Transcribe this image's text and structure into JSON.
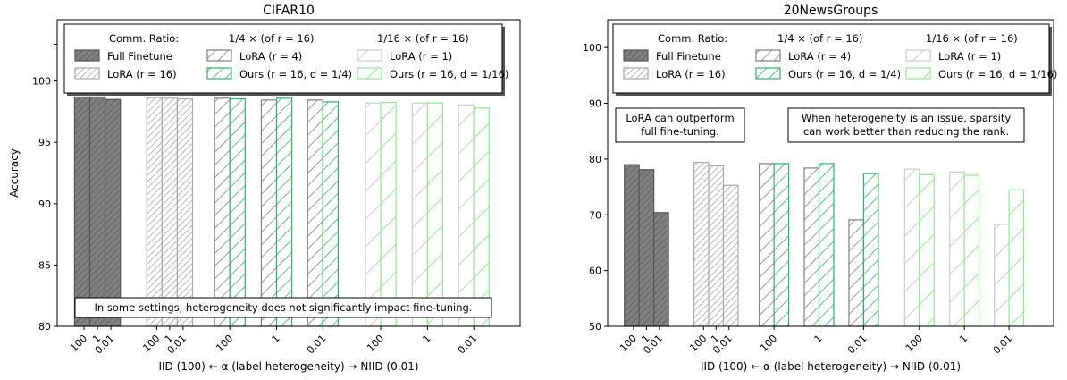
{
  "chart_data": [
    {
      "type": "bar",
      "title": "CIFAR10",
      "ylabel": "Accuracy",
      "xlabel": "IID (100) ← α (label heterogeneity) → NIID (0.01)",
      "ylim": [
        80,
        105
      ],
      "yticks": [
        80,
        85,
        90,
        95,
        100
      ],
      "grid": false,
      "legend_location": "top",
      "groups": [
        {
          "series": "Full Finetune",
          "alphas": [
            "100",
            "1",
            "0.01"
          ],
          "values": [
            98.7,
            98.7,
            98.5
          ]
        },
        {
          "series": "LoRA (r=16)",
          "alphas": [
            "100",
            "1",
            "0.01"
          ],
          "values": [
            98.65,
            98.6,
            98.55
          ]
        },
        {
          "series": "LoRA (r=4)",
          "alphas": [
            "100"
          ],
          "values": [
            98.6
          ]
        },
        {
          "series": "Ours (r=16, d=1/4)",
          "alphas": [
            "100"
          ],
          "values": [
            98.55
          ]
        },
        {
          "series": "LoRA (r=4)",
          "alphas": [
            "1"
          ],
          "values": [
            98.45
          ]
        },
        {
          "series": "Ours (r=16, d=1/4)",
          "alphas": [
            "1"
          ],
          "values": [
            98.6
          ]
        },
        {
          "series": "LoRA (r=4)",
          "alphas": [
            "0.01"
          ],
          "values": [
            98.45
          ]
        },
        {
          "series": "Ours (r=16, d=1/4)",
          "alphas": [
            "0.01"
          ],
          "values": [
            98.3
          ]
        },
        {
          "series": "LoRA (r=1)",
          "alphas": [
            "100"
          ],
          "values": [
            98.2
          ]
        },
        {
          "series": "Ours (r=16, d=1/16)",
          "alphas": [
            "100"
          ],
          "values": [
            98.25
          ]
        },
        {
          "series": "LoRA (r=1)",
          "alphas": [
            "1"
          ],
          "values": [
            98.2
          ]
        },
        {
          "series": "Ours (r=16, d=1/16)",
          "alphas": [
            "1"
          ],
          "values": [
            98.2
          ]
        },
        {
          "series": "LoRA (r=1)",
          "alphas": [
            "0.01"
          ],
          "values": [
            98.05
          ]
        },
        {
          "series": "Ours (r=16, d=1/16)",
          "alphas": [
            "0.01"
          ],
          "values": [
            97.8
          ]
        }
      ],
      "annotations": [
        {
          "text": "In some settings, heterogeneity does not significantly impact fine-tuning."
        }
      ]
    },
    {
      "type": "bar",
      "title": "20NewsGroups",
      "ylabel": "",
      "xlabel": "IID (100) ← α (label heterogeneity) → NIID (0.01)",
      "ylim": [
        50,
        105
      ],
      "yticks": [
        50,
        60,
        70,
        80,
        90,
        100
      ],
      "grid": false,
      "legend_location": "top",
      "groups": [
        {
          "series": "Full Finetune",
          "alphas": [
            "100",
            "1",
            "0.01"
          ],
          "values": [
            79.0,
            78.1,
            70.4
          ]
        },
        {
          "series": "LoRA (r=16)",
          "alphas": [
            "100",
            "1",
            "0.01"
          ],
          "values": [
            79.4,
            78.8,
            75.3
          ]
        },
        {
          "series": "LoRA (r=4)",
          "alphas": [
            "100"
          ],
          "values": [
            79.2
          ]
        },
        {
          "series": "Ours (r=16, d=1/4)",
          "alphas": [
            "100"
          ],
          "values": [
            79.2
          ]
        },
        {
          "series": "LoRA (r=4)",
          "alphas": [
            "1"
          ],
          "values": [
            78.4
          ]
        },
        {
          "series": "Ours (r=16, d=1/4)",
          "alphas": [
            "1"
          ],
          "values": [
            79.2
          ]
        },
        {
          "series": "LoRA (r=4)",
          "alphas": [
            "0.01"
          ],
          "values": [
            69.1
          ]
        },
        {
          "series": "Ours (r=16, d=1/4)",
          "alphas": [
            "0.01"
          ],
          "values": [
            77.4
          ]
        },
        {
          "series": "LoRA (r=1)",
          "alphas": [
            "100"
          ],
          "values": [
            78.2
          ]
        },
        {
          "series": "Ours (r=16, d=1/16)",
          "alphas": [
            "100"
          ],
          "values": [
            77.2
          ]
        },
        {
          "series": "LoRA (r=1)",
          "alphas": [
            "1"
          ],
          "values": [
            77.7
          ]
        },
        {
          "series": "Ours (r=16, d=1/16)",
          "alphas": [
            "1"
          ],
          "values": [
            77.1
          ]
        },
        {
          "series": "LoRA (r=1)",
          "alphas": [
            "0.01"
          ],
          "values": [
            68.3
          ]
        },
        {
          "series": "Ours (r=16, d=1/16)",
          "alphas": [
            "0.01"
          ],
          "values": [
            74.5
          ]
        }
      ],
      "annotations": [
        {
          "text": "LoRA can outperform\nfull fine-tuning."
        },
        {
          "text": "When heterogeneity is an issue, sparsity\ncan work better than reducing the rank."
        }
      ]
    }
  ],
  "legend": {
    "comm_ratio_label": "Comm. Ratio:",
    "col2_header": "1/4 ×  (of r = 16)",
    "col3_header": "1/16 ×  (of r = 16)",
    "entries": [
      {
        "label": "Full Finetune",
        "style": "full"
      },
      {
        "label": "LoRA (r = 16)",
        "style": "lora16"
      },
      {
        "label": "LoRA (r = 4)",
        "style": "lora4"
      },
      {
        "label": "Ours (r = 16, d = 1/4)",
        "style": "ours4"
      },
      {
        "label": "LoRA (r = 1)",
        "style": "lora1"
      },
      {
        "label": "Ours (r = 16, d = 1/16)",
        "style": "ours16"
      }
    ]
  },
  "colors": {
    "full_edge": "#555555",
    "full_fill": "#808080",
    "lora16_edge": "#a9a9a9",
    "lora4_edge": "#808080",
    "ours4_edge": "#2eb06e",
    "lora1_edge": "#cccccc",
    "ours16_edge": "#8fea8f"
  }
}
